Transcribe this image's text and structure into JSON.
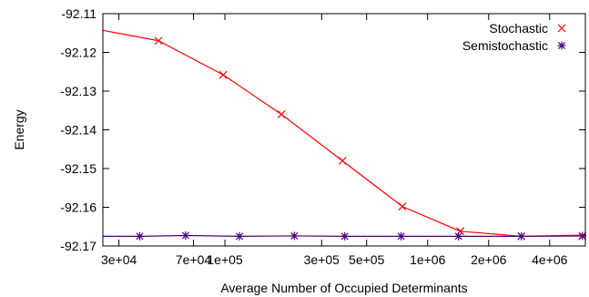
{
  "chart_data": {
    "type": "line",
    "title": "",
    "xlabel": "Average Number of Occupied Determinants",
    "ylabel": "Energy",
    "x_scale": "log",
    "xlim": [
      25000,
      6000000
    ],
    "ylim": [
      -92.17,
      -92.11
    ],
    "x_ticks": [
      {
        "value": 30000,
        "label": "3e+04"
      },
      {
        "value": 70000,
        "label": "7e+04"
      },
      {
        "value": 100000,
        "label": "1e+05"
      },
      {
        "value": 300000,
        "label": "3e+05"
      },
      {
        "value": 500000,
        "label": "5e+05"
      },
      {
        "value": 1000000,
        "label": "1e+06"
      },
      {
        "value": 2000000,
        "label": "2e+06"
      },
      {
        "value": 4000000,
        "label": "4e+06"
      }
    ],
    "y_ticks": [
      {
        "value": -92.11,
        "label": "-92.11"
      },
      {
        "value": -92.12,
        "label": "-92.12"
      },
      {
        "value": -92.13,
        "label": "-92.13"
      },
      {
        "value": -92.14,
        "label": "-92.14"
      },
      {
        "value": -92.15,
        "label": "-92.15"
      },
      {
        "value": -92.16,
        "label": "-92.16"
      },
      {
        "value": -92.17,
        "label": "-92.17"
      }
    ],
    "grid": false,
    "legend": "top-right",
    "series": [
      {
        "name": "Stochastic",
        "color": "#ff0000",
        "marker": "x",
        "points": [
          {
            "x": 47000,
            "y": -92.117
          },
          {
            "x": 98000,
            "y": -92.1258
          },
          {
            "x": 190000,
            "y": -92.136
          },
          {
            "x": 380000,
            "y": -92.148
          },
          {
            "x": 750000,
            "y": -92.1598
          },
          {
            "x": 1450000,
            "y": -92.1662
          },
          {
            "x": 2900000,
            "y": -92.1675
          },
          {
            "x": 5800000,
            "y": -92.1675
          }
        ],
        "line": [
          {
            "x": 25000,
            "y": -92.1143
          },
          {
            "x": 47000,
            "y": -92.117
          },
          {
            "x": 98000,
            "y": -92.1258
          },
          {
            "x": 190000,
            "y": -92.136
          },
          {
            "x": 380000,
            "y": -92.148
          },
          {
            "x": 750000,
            "y": -92.1598
          },
          {
            "x": 1450000,
            "y": -92.1662
          },
          {
            "x": 2900000,
            "y": -92.1675
          },
          {
            "x": 6000000,
            "y": -92.1672
          }
        ]
      },
      {
        "name": "Semistochastic",
        "color": "#4b0082",
        "marker": "asterisk",
        "points": [
          {
            "x": 38000,
            "y": -92.1675
          },
          {
            "x": 64000,
            "y": -92.1673
          },
          {
            "x": 118000,
            "y": -92.1675
          },
          {
            "x": 220000,
            "y": -92.1674
          },
          {
            "x": 390000,
            "y": -92.1675
          },
          {
            "x": 740000,
            "y": -92.1675
          },
          {
            "x": 1420000,
            "y": -92.1675
          },
          {
            "x": 2900000,
            "y": -92.1675
          },
          {
            "x": 5800000,
            "y": -92.1674
          }
        ],
        "line": [
          {
            "x": 25000,
            "y": -92.1675
          },
          {
            "x": 38000,
            "y": -92.1675
          },
          {
            "x": 64000,
            "y": -92.1673
          },
          {
            "x": 118000,
            "y": -92.1675
          },
          {
            "x": 220000,
            "y": -92.1674
          },
          {
            "x": 390000,
            "y": -92.1675
          },
          {
            "x": 740000,
            "y": -92.1675
          },
          {
            "x": 1420000,
            "y": -92.1675
          },
          {
            "x": 2900000,
            "y": -92.1675
          },
          {
            "x": 6000000,
            "y": -92.1674
          }
        ]
      }
    ]
  }
}
